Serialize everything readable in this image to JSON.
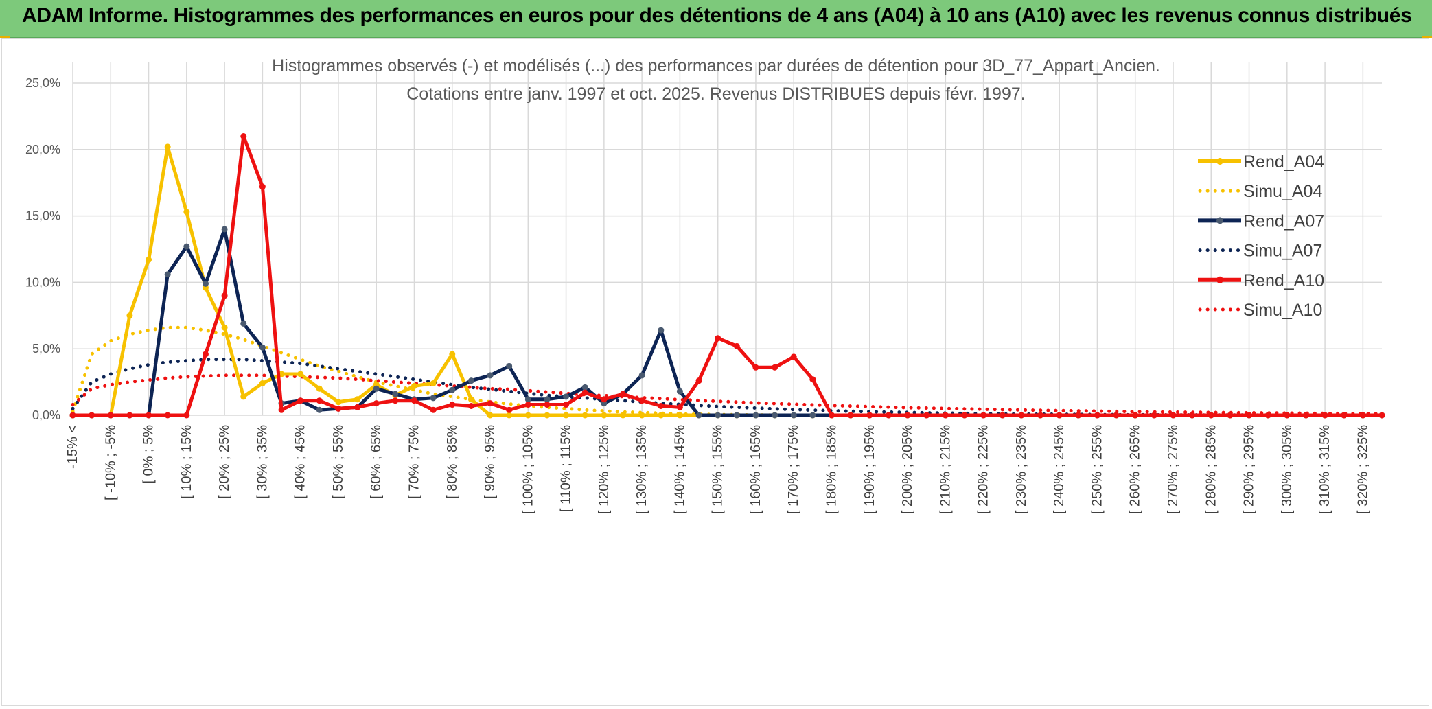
{
  "header": {
    "title": "ADAM Informe. Histogrammes des performances en euros pour des détentions de 4 ans (A04) à 10 ans (A10) avec les revenus connus distribués"
  },
  "colors": {
    "header_bg": "#7dc97b",
    "A04": "#f7c100",
    "A07": "#0d2454",
    "A10": "#ee1111",
    "A07_marker": "#4a5a70",
    "A04_marker": "#f7c100",
    "A10_marker": "#ee1111",
    "grid": "#d9d9d9"
  },
  "chart_data": {
    "type": "line",
    "title": "Histogrammes observés (-) et modélisés (...) des performances par durées de détention pour 3D_77_Appart_Ancien.",
    "subtitle": "Cotations entre janv. 1997 et oct. 2025. Revenus DISTRIBUES depuis févr. 1997.",
    "xlabel": "",
    "ylabel": "",
    "ylim": [
      0,
      25
    ],
    "yticks": [
      "0,0%",
      "5,0%",
      "10,0%",
      "15,0%",
      "20,0%",
      "25,0%"
    ],
    "grid": true,
    "legend_position": "right",
    "x_labels": [
      "-15% <",
      "[ -10% ; -5%",
      "[ 0% ; 5%",
      "[ 10% ; 15%",
      "[ 20% ; 25%",
      "[ 30% ; 35%",
      "[ 40% ; 45%",
      "[ 50% ; 55%",
      "[ 60% ; 65%",
      "[ 70% ; 75%",
      "[ 80% ; 85%",
      "[ 90% ; 95%",
      "[ 100% ; 105%",
      "[ 110% ; 115%",
      "[ 120% ; 125%",
      "[ 130% ; 135%",
      "[ 140% ; 145%",
      "[ 150% ; 155%",
      "[ 160% ; 165%",
      "[ 170% ; 175%",
      "[ 180% ; 185%",
      "[ 190% ; 195%",
      "[ 200% ; 205%",
      "[ 210% ; 215%",
      "[ 220% ; 225%",
      "[ 230% ; 235%",
      "[ 240% ; 245%",
      "[ 250% ; 255%",
      "[ 260% ; 265%",
      "[ 270% ; 275%",
      "[ 280% ; 285%",
      "[ 290% ; 295%",
      "[ 300% ; 305%",
      "[ 310% ; 315%",
      "[ 320% ; 325%"
    ],
    "n_points": 70,
    "series": [
      {
        "name": "Rend_A04",
        "style": "solid",
        "color_key": "A04",
        "values": [
          0,
          0,
          0,
          7.5,
          11.7,
          20.2,
          15.3,
          9.6,
          6.6,
          1.4,
          2.4,
          3.1,
          3.1,
          2.0,
          1.0,
          1.2,
          2.3,
          1.5,
          2.2,
          2.4,
          4.6,
          1.2,
          0,
          0,
          0,
          0,
          0,
          0,
          0,
          0,
          0,
          0,
          0,
          0,
          0,
          0,
          0,
          0,
          0,
          0,
          0,
          0,
          0,
          0,
          0,
          0,
          0,
          0,
          0,
          0,
          0,
          0,
          0,
          0,
          0,
          0,
          0,
          0,
          0,
          0,
          0,
          0,
          0,
          0,
          0,
          0,
          0,
          0,
          0,
          0
        ]
      },
      {
        "name": "Simu_A04",
        "style": "dotted",
        "color_key": "A04",
        "values": [
          0.3,
          4.6,
          5.6,
          6.1,
          6.4,
          6.6,
          6.6,
          6.4,
          6.1,
          5.7,
          5.2,
          4.7,
          4.2,
          3.7,
          3.3,
          2.9,
          2.5,
          2.2,
          1.9,
          1.6,
          1.4,
          1.2,
          1.0,
          0.85,
          0.7,
          0.6,
          0.5,
          0.4,
          0.32,
          0.25,
          0.2,
          0.15,
          0.1,
          0.07,
          0.05,
          0.03,
          0.02,
          0.01,
          0,
          0,
          0,
          0,
          0,
          0,
          0,
          0,
          0,
          0,
          0,
          0,
          0,
          0,
          0,
          0,
          0,
          0,
          0,
          0,
          0,
          0,
          0,
          0,
          0,
          0,
          0,
          0,
          0,
          0,
          0,
          0
        ]
      },
      {
        "name": "Rend_A07",
        "style": "solid",
        "color_key": "A07",
        "values": [
          0,
          0,
          0,
          0,
          0,
          10.6,
          12.7,
          9.9,
          14.0,
          6.9,
          5.1,
          0.9,
          1.1,
          0.4,
          0.5,
          0.6,
          2.0,
          1.6,
          1.2,
          1.3,
          1.9,
          2.6,
          3.0,
          3.7,
          1.2,
          1.2,
          1.4,
          2.1,
          0.9,
          1.6,
          3.0,
          6.4,
          1.8,
          0,
          0,
          0,
          0,
          0,
          0,
          0,
          0,
          0,
          0,
          0,
          0,
          0,
          0,
          0,
          0,
          0,
          0,
          0,
          0,
          0,
          0,
          0,
          0,
          0,
          0,
          0,
          0,
          0,
          0,
          0,
          0,
          0,
          0,
          0,
          0,
          0
        ]
      },
      {
        "name": "Simu_A07",
        "style": "dotted",
        "color_key": "A07",
        "values": [
          0.5,
          2.5,
          3.1,
          3.5,
          3.8,
          4.0,
          4.1,
          4.2,
          4.2,
          4.2,
          4.1,
          4.0,
          3.9,
          3.7,
          3.5,
          3.3,
          3.1,
          2.9,
          2.7,
          2.5,
          2.3,
          2.1,
          1.95,
          1.8,
          1.65,
          1.5,
          1.4,
          1.3,
          1.2,
          1.1,
          1.0,
          0.9,
          0.82,
          0.74,
          0.66,
          0.6,
          0.54,
          0.48,
          0.43,
          0.38,
          0.34,
          0.3,
          0.27,
          0.24,
          0.21,
          0.18,
          0.16,
          0.14,
          0.12,
          0.1,
          0.09,
          0.08,
          0.07,
          0.06,
          0.05,
          0.04,
          0.03,
          0.03,
          0.02,
          0.02,
          0.01,
          0.01,
          0.01,
          0,
          0,
          0,
          0,
          0,
          0,
          0
        ]
      },
      {
        "name": "Rend_A10",
        "style": "solid",
        "color_key": "A10",
        "values": [
          0,
          0,
          0,
          0,
          0,
          0,
          0,
          4.6,
          9.0,
          21.0,
          17.2,
          0.4,
          1.1,
          1.1,
          0.5,
          0.6,
          0.9,
          1.1,
          1.1,
          0.4,
          0.8,
          0.7,
          0.9,
          0.4,
          0.8,
          0.8,
          0.8,
          1.7,
          1.2,
          1.6,
          1.1,
          0.7,
          0.6,
          2.6,
          5.8,
          5.2,
          3.6,
          3.6,
          4.4,
          2.7,
          0,
          0,
          0,
          0,
          0,
          0,
          0,
          0,
          0,
          0,
          0,
          0,
          0,
          0,
          0,
          0,
          0,
          0,
          0,
          0,
          0,
          0,
          0,
          0,
          0,
          0,
          0,
          0,
          0,
          0
        ]
      },
      {
        "name": "Simu_A10",
        "style": "dotted",
        "color_key": "A10",
        "values": [
          0.8,
          2.0,
          2.3,
          2.5,
          2.65,
          2.8,
          2.9,
          2.95,
          3.0,
          3.0,
          3.0,
          2.95,
          2.9,
          2.85,
          2.8,
          2.7,
          2.6,
          2.5,
          2.4,
          2.3,
          2.2,
          2.1,
          2.0,
          1.95,
          1.85,
          1.75,
          1.65,
          1.55,
          1.48,
          1.4,
          1.32,
          1.25,
          1.18,
          1.11,
          1.05,
          0.99,
          0.93,
          0.88,
          0.83,
          0.78,
          0.73,
          0.69,
          0.65,
          0.61,
          0.57,
          0.54,
          0.51,
          0.48,
          0.45,
          0.42,
          0.4,
          0.37,
          0.35,
          0.33,
          0.31,
          0.29,
          0.27,
          0.25,
          0.24,
          0.22,
          0.21,
          0.19,
          0.18,
          0.17,
          0.16,
          0.15,
          0.14,
          0.13,
          0.12,
          0.11
        ]
      }
    ]
  }
}
